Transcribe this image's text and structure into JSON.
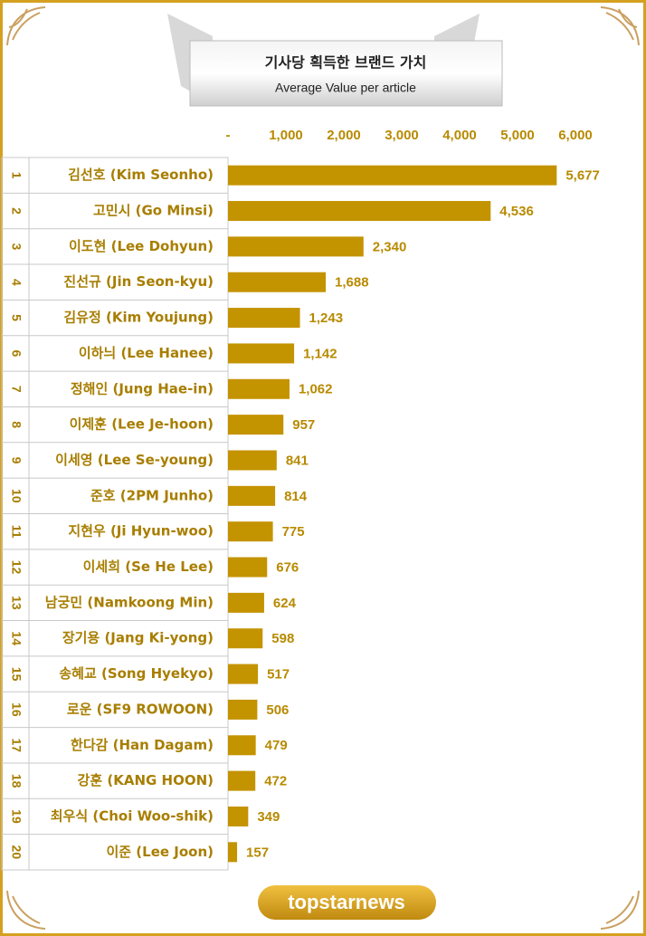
{
  "chart_data": {
    "type": "bar",
    "orientation": "horizontal",
    "title": "기사당 획득한 브랜드 가치",
    "subtitle": "Average Value per article",
    "ranks": [
      "1",
      "2",
      "3",
      "4",
      "5",
      "6",
      "7",
      "8",
      "9",
      "10",
      "11",
      "12",
      "13",
      "14",
      "15",
      "16",
      "17",
      "18",
      "19",
      "20"
    ],
    "categories": [
      "김선호 (Kim Seonho)",
      "고민시 (Go Minsi)",
      "이도현 (Lee Dohyun)",
      "진선규 (Jin Seon-kyu)",
      "김유정 (Kim Youjung)",
      "이하늬 (Lee Hanee)",
      "정해인 (Jung Hae-in)",
      "이제훈 (Lee Je-hoon)",
      "이세영 (Lee Se-young)",
      "준호 (2PM Junho)",
      "지현우 (Ji Hyun-woo)",
      "이세희 (Se He Lee)",
      "남궁민 (Namkoong Min)",
      "장기용 (Jang Ki-yong)",
      "송혜교 (Song Hyekyo)",
      "로운 (SF9 ROWOON)",
      "한다감 (Han Dagam)",
      "강훈 (KANG HOON)",
      "최우식 (Choi Woo-shik)",
      "이준 (Lee Joon)"
    ],
    "values": [
      5677,
      4536,
      2340,
      1688,
      1243,
      1142,
      1062,
      957,
      841,
      814,
      775,
      676,
      624,
      598,
      517,
      506,
      479,
      472,
      349,
      157
    ],
    "value_labels": [
      "5,677",
      "4,536",
      "2,340",
      "1,688",
      "1,243",
      "1,142",
      "1,062",
      "957",
      "841",
      "814",
      "775",
      "676",
      "624",
      "598",
      "517",
      "506",
      "479",
      "472",
      "349",
      "157"
    ],
    "color": "#c49300",
    "xlim": [
      0,
      6000
    ],
    "xticks": [
      {
        "value": 0,
        "label": "-"
      },
      {
        "value": 1000,
        "label": "1,000"
      },
      {
        "value": 2000,
        "label": "2,000"
      },
      {
        "value": 3000,
        "label": "3,000"
      },
      {
        "value": 4000,
        "label": "4,000"
      },
      {
        "value": 5000,
        "label": "5,000"
      },
      {
        "value": 6000,
        "label": "6,000"
      }
    ],
    "grid": false,
    "logo": "topstarnews"
  }
}
